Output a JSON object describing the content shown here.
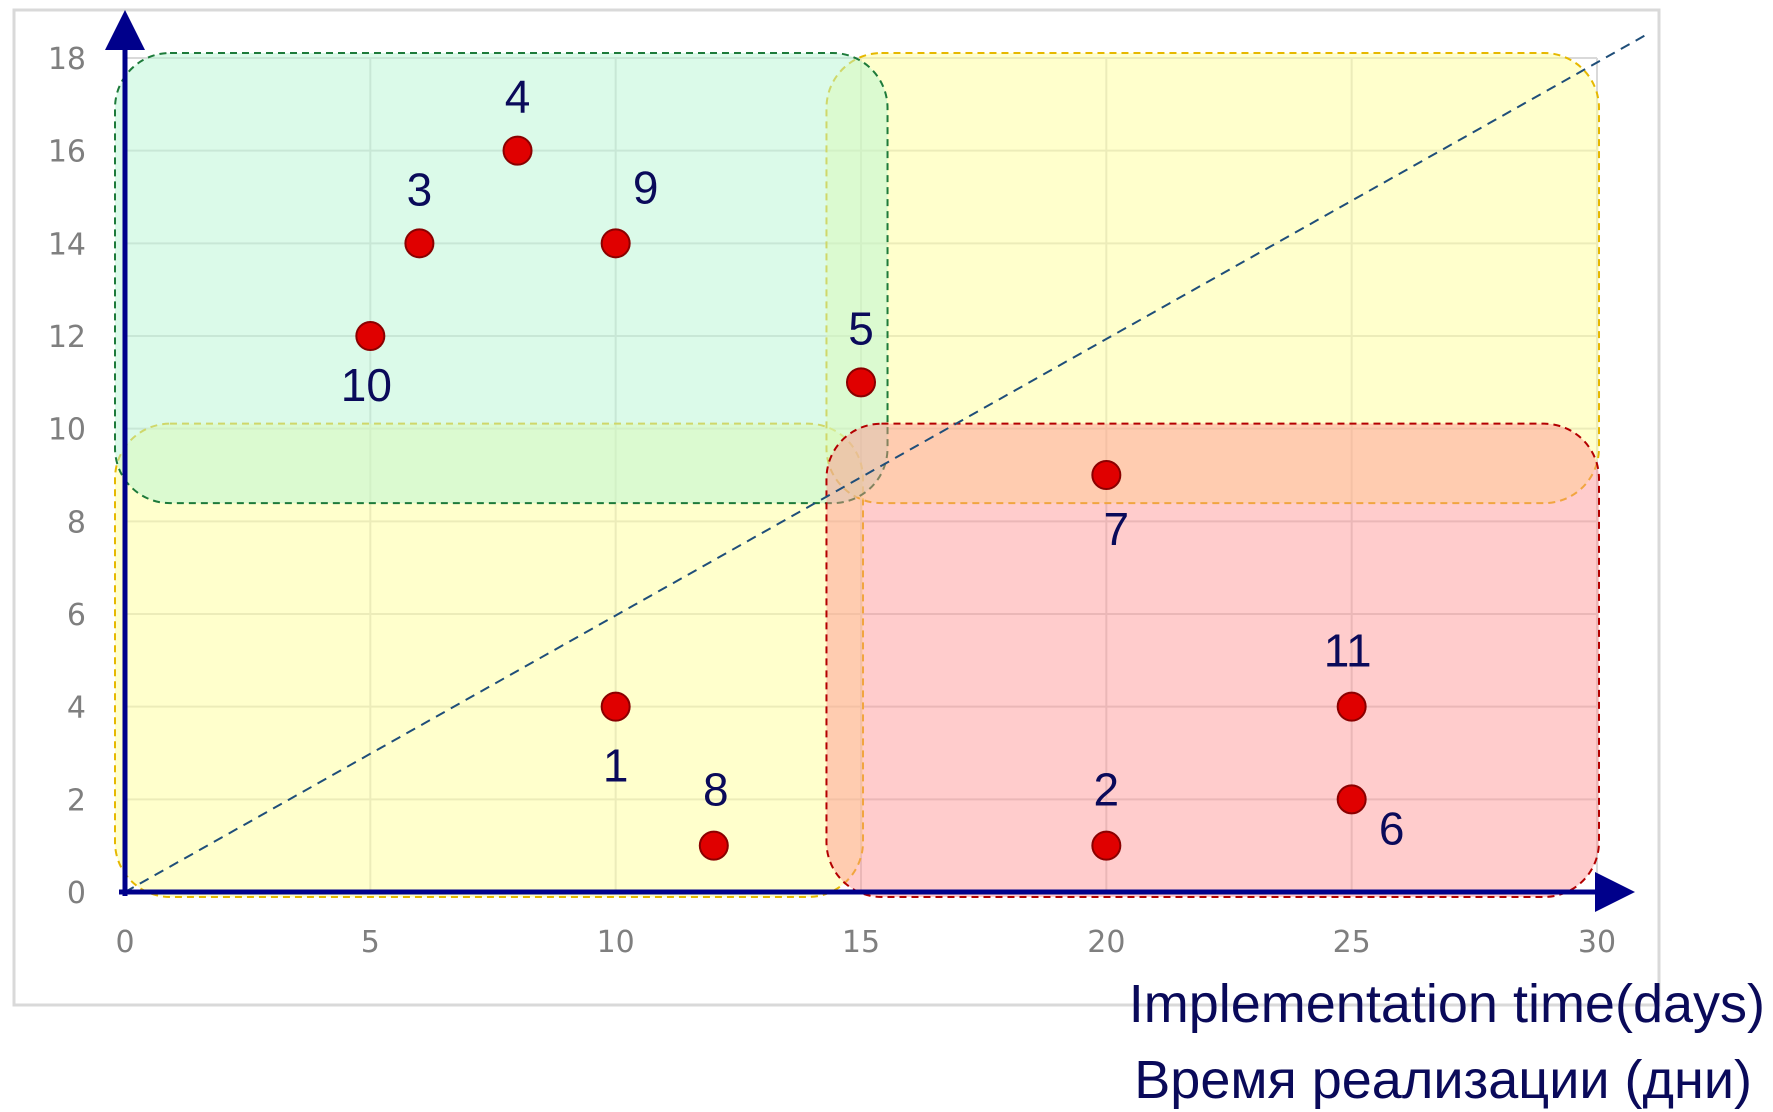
{
  "colors": {
    "grid": "#d9d9d9",
    "axis": "#00008b",
    "point": "#e00000",
    "label": "#0a0a5a",
    "tick": "#7f7f7f",
    "quick_win_zone": "#b8f5d3",
    "quick_win_border": "#1d7a3a",
    "yellow_zone": "#ffff99",
    "yellow_border": "#e6b800",
    "red_zone": "#ff8f8f",
    "red_border": "#b30000",
    "diagonal": "#1f4e79"
  },
  "chart_data": {
    "type": "scatter",
    "title": "",
    "xlabel": "",
    "ylabel": "",
    "xlabel_lines": [
      "Implementation time(days)",
      "Время реализации (дни)"
    ],
    "xlim": [
      0,
      30
    ],
    "ylim": [
      0,
      18
    ],
    "x_ticks": [
      0,
      5,
      10,
      15,
      20,
      25,
      30
    ],
    "y_ticks": [
      0,
      2,
      4,
      6,
      8,
      10,
      12,
      14,
      16,
      18
    ],
    "grid": true,
    "legend": "none",
    "points": [
      {
        "label": "1",
        "x": 10,
        "y": 4
      },
      {
        "label": "2",
        "x": 20,
        "y": 1
      },
      {
        "label": "3",
        "x": 6,
        "y": 14
      },
      {
        "label": "4",
        "x": 8,
        "y": 16
      },
      {
        "label": "5",
        "x": 15,
        "y": 11
      },
      {
        "label": "6",
        "x": 25,
        "y": 2
      },
      {
        "label": "7",
        "x": 20,
        "y": 9
      },
      {
        "label": "8",
        "x": 12,
        "y": 1
      },
      {
        "label": "9",
        "x": 10,
        "y": 14
      },
      {
        "label": "10",
        "x": 5,
        "y": 12
      },
      {
        "label": "11",
        "x": 25,
        "y": 4
      }
    ],
    "zones": [
      {
        "name": "bottom-left",
        "x": [
          0,
          15
        ],
        "y": [
          0,
          10
        ],
        "color": "yellow"
      },
      {
        "name": "top-right",
        "x": [
          14.5,
          30
        ],
        "y": [
          8.5,
          18
        ],
        "color": "yellow"
      },
      {
        "name": "top-left",
        "x": [
          0,
          15.5
        ],
        "y": [
          8.5,
          18
        ],
        "color": "green"
      },
      {
        "name": "bottom-right",
        "x": [
          14.5,
          30
        ],
        "y": [
          0,
          10
        ],
        "color": "red"
      }
    ],
    "diagonal": {
      "from": [
        0,
        0
      ],
      "to": [
        31,
        18.5
      ]
    }
  }
}
